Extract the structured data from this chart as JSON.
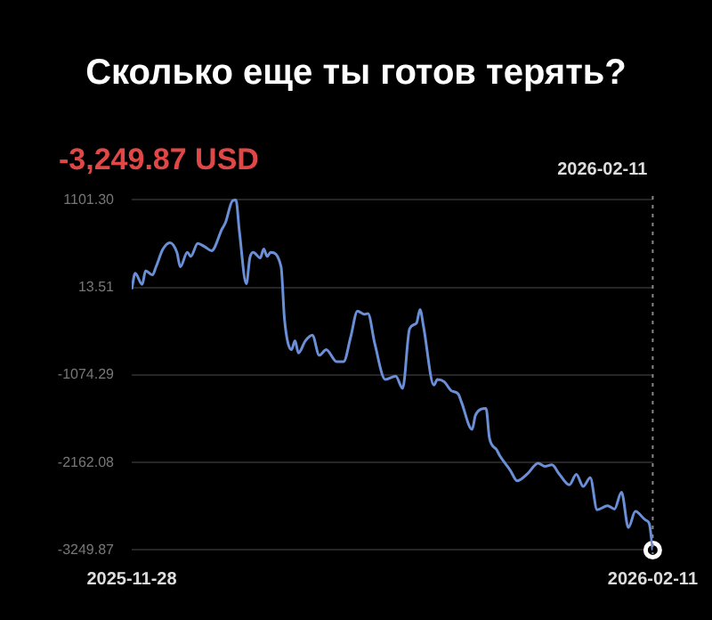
{
  "chart_data": {
    "type": "line",
    "title": "Сколько еще ты готов терять?",
    "annotations": [
      "-3,249.87 USD"
    ],
    "xlim": [
      "2025-11-28",
      "2026-02-11"
    ],
    "xticks": [
      "2025-11-28",
      "2026-02-11"
    ],
    "ylim": [
      -3300,
      1150
    ],
    "yticks": [
      {
        "value": 1101.3,
        "label": "1101.30"
      },
      13.51,
      -1074.29,
      -2162.08,
      -3249.87
    ],
    "grid": "y",
    "legend": false,
    "line_style": "solid",
    "ref_lines": [
      {
        "axis": "x",
        "value": "2026-02-11",
        "label": "2026-02-11",
        "line_style": "dotted",
        "color": "#888888"
      }
    ],
    "series": [
      {
        "type": "line",
        "color": "#6b8fd6",
        "marker": "none",
        "x": [
          "2025-11-28",
          "2025-11-28T12:00",
          "2025-11-29T12:00",
          "2025-11-30",
          "2025-12-01",
          "2025-12-01T12:00",
          "2025-12-02T12:00",
          "2025-12-03T12:00",
          "2025-12-04T12:00",
          "2025-12-05",
          "2025-12-06",
          "2025-12-06T12:00",
          "2025-12-07T12:00",
          "2025-12-08T12:00",
          "2025-12-09T12:00",
          "2025-12-11",
          "2025-12-11T12:00",
          "2025-12-12T12:00",
          "2025-12-13",
          "2025-12-13T12:00",
          "2025-12-14T12:00",
          "2025-12-15",
          "2025-12-15T12:00",
          "2025-12-16T12:00",
          "2025-12-17",
          "2025-12-17T12:00",
          "2025-12-18",
          "2025-12-19T12:00",
          "2025-12-20",
          "2025-12-21",
          "2025-12-21T12:00",
          "2025-12-22",
          "2025-12-23",
          "2025-12-24",
          "2025-12-25",
          "2025-12-26",
          "2025-12-27T12:00",
          "2025-12-28T12:00",
          "2025-12-29T12:00",
          "2025-12-30T12:00",
          "2025-12-31T12:00",
          "2026-01-01",
          "2026-01-02",
          "2026-01-03T12:00",
          "2026-01-05",
          "2026-01-06",
          "2026-01-07",
          "2026-01-08",
          "2026-01-08T12:00",
          "2026-01-09",
          "2026-01-10T12:00",
          "2026-01-11",
          "2026-01-12",
          "2026-01-13",
          "2026-01-14",
          "2026-01-14T12:00",
          "2026-01-16",
          "2026-01-16T12:00",
          "2026-01-18",
          "2026-01-18T12:00",
          "2026-01-19T12:00",
          "2026-01-20",
          "2026-01-21T12:00",
          "2026-01-22T12:00",
          "2026-01-24",
          "2026-01-25T12:00",
          "2026-01-26T12:00",
          "2026-01-27T12:00",
          "2026-01-28T12:00",
          "2026-01-30",
          "2026-01-31",
          "2026-02-01",
          "2026-02-02",
          "2026-02-03",
          "2026-02-04T12:00",
          "2026-02-05T12:00",
          "2026-02-06T12:00",
          "2026-02-07T12:00",
          "2026-02-08T12:00",
          "2026-02-10",
          "2026-02-10T12:00",
          "2026-02-11"
        ],
        "values": [
          -10,
          190,
          50,
          220,
          170,
          270,
          490,
          570,
          450,
          270,
          450,
          400,
          560,
          520,
          470,
          740,
          820,
          1090,
          1100,
          710,
          60,
          380,
          450,
          380,
          490,
          400,
          450,
          270,
          -390,
          -760,
          -650,
          -800,
          -650,
          -580,
          -830,
          -760,
          -910,
          -910,
          -610,
          -280,
          -320,
          -310,
          -690,
          -1130,
          -1090,
          -1240,
          -500,
          -430,
          -260,
          -470,
          -1200,
          -1130,
          -1160,
          -1270,
          -1310,
          -1420,
          -1750,
          -1570,
          -1490,
          -1860,
          -2000,
          -2080,
          -2260,
          -2390,
          -2300,
          -2170,
          -2210,
          -2190,
          -2300,
          -2440,
          -2310,
          -2460,
          -2350,
          -2750,
          -2700,
          -2740,
          -2530,
          -2970,
          -2770,
          -2880,
          -2920,
          -3250
        ]
      },
      {
        "type": "scatter",
        "color": "#ffffff",
        "marker": "circle",
        "x": [
          "2026-02-11"
        ],
        "values": [
          -3250
        ]
      }
    ]
  }
}
